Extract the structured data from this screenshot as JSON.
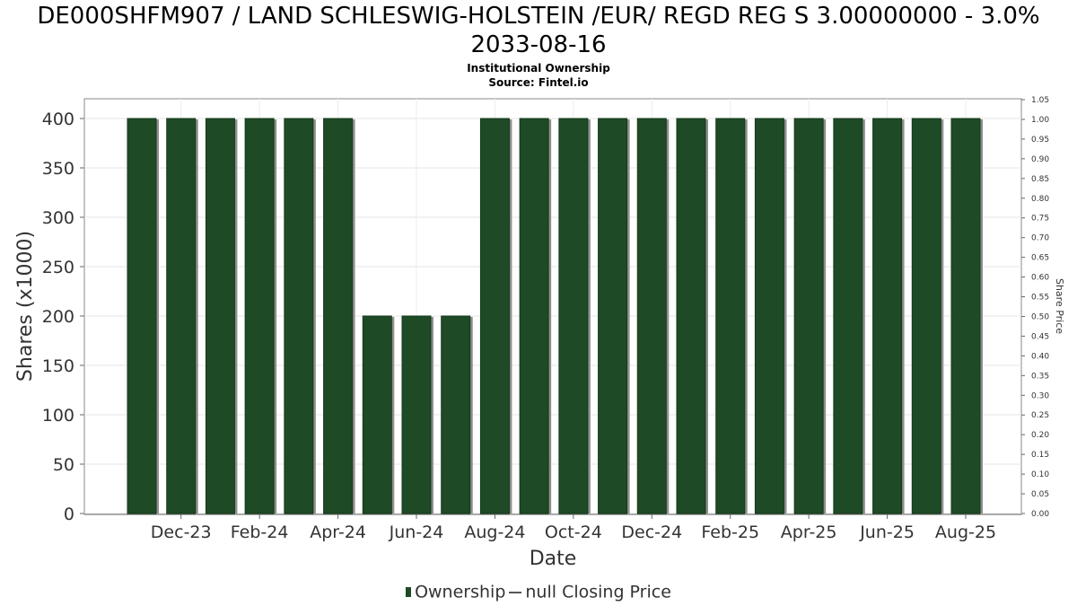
{
  "chart_data": {
    "type": "bar",
    "title": "DE000SHFM907 / LAND SCHLESWIG-HOLSTEIN /EUR/ REGD REG S 3.00000000 - 3.0% 2033-08-16",
    "subtitle_lines": [
      "Institutional Ownership",
      "Source: Fintel.io"
    ],
    "xlabel": "Date",
    "ylabel": "Shares (x1000)",
    "y2label": "Share Price",
    "ylim": [
      0,
      400
    ],
    "y2lim": [
      0,
      1.05
    ],
    "yticks": [
      "0",
      "50",
      "100",
      "150",
      "200",
      "250",
      "300",
      "350",
      "400"
    ],
    "y2ticks": [
      "0.00",
      "0.05",
      "0.10",
      "0.15",
      "0.20",
      "0.25",
      "0.30",
      "0.35",
      "0.40",
      "0.45",
      "0.50",
      "0.55",
      "0.60",
      "0.65",
      "0.70",
      "0.75",
      "0.80",
      "0.85",
      "0.90",
      "0.95",
      "1.00",
      "1.05"
    ],
    "xtick_labels": [
      "Dec-23",
      "Feb-24",
      "Apr-24",
      "Jun-24",
      "Aug-24",
      "Oct-24",
      "Dec-24",
      "Feb-25",
      "Apr-25",
      "Jun-25",
      "Aug-25"
    ],
    "bar_color": "#1e4a25",
    "grid": true,
    "legend_placement": "bottom",
    "series": [
      {
        "name": "Ownership",
        "x": [
          "Nov-23",
          "Dec-23",
          "Jan-24",
          "Feb-24",
          "Mar-24",
          "Apr-24",
          "May-24",
          "Jun-24",
          "Jul-24",
          "Aug-24",
          "Sep-24",
          "Oct-24",
          "Nov-24",
          "Dec-24",
          "Jan-25",
          "Feb-25",
          "Mar-25",
          "Apr-25",
          "May-25",
          "Jun-25",
          "Jul-25",
          "Aug-25"
        ],
        "values": [
          400,
          400,
          400,
          400,
          400,
          400,
          200,
          200,
          200,
          400,
          400,
          400,
          400,
          400,
          400,
          400,
          400,
          400,
          400,
          400,
          400,
          400
        ]
      }
    ],
    "legend": [
      "Ownership",
      "null Closing Price"
    ]
  }
}
